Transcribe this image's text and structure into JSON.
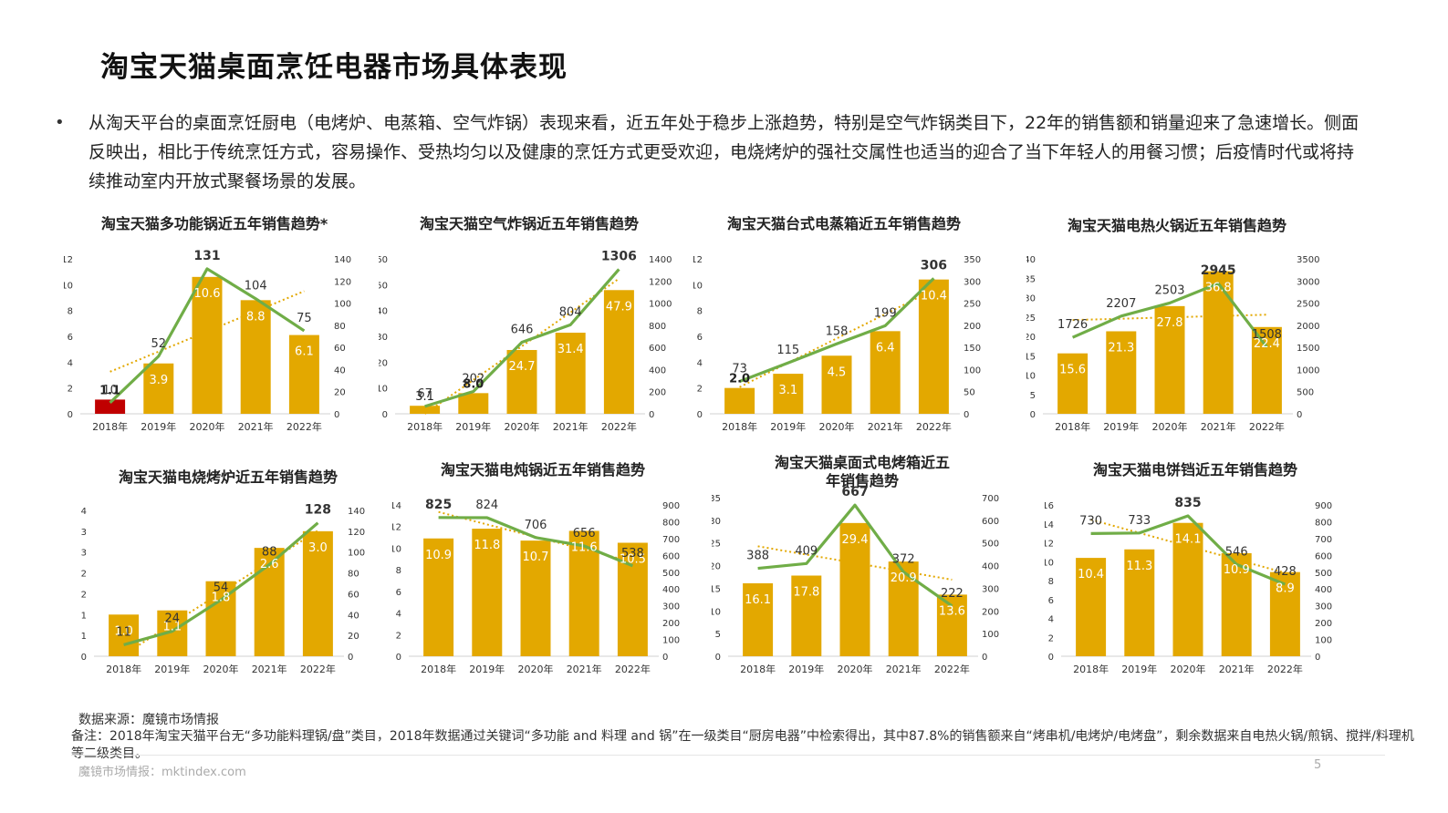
{
  "page": {
    "title": "淘宝天猫桌面烹饪电器市场具体表现",
    "bullet_marker": "•",
    "bullet_text": "从淘天平台的桌面烹饪厨电（电烤炉、电蒸箱、空气炸锅）表现来看，近五年处于稳步上涨趋势，特别是空气炸锅类目下，22年的销售额和销量迎来了急速增长。侧面反映出，相比于传统烹饪方式，容易操作、受热均匀以及健康的烹饪方式更受欢迎，电烧烤炉的强社交属性也适当的迎合了当下年轻人的用餐习惯；后疫情时代或将持续推动室内开放式聚餐场景的发展。",
    "source": "数据来源：魔镜市场情报",
    "note": "备注：2018年淘宝天猫平台无“多功能料理锅/盘”类目，2018年数据通过关键词“多功能 and 料理 and 锅”在一级类目“厨房电器”中检索得出，其中87.8%的销售额来自“烤串机/电烤炉/电烤盘”，剩余数据来自电热火锅/煎锅、搅拌/料理机等二级类目。",
    "website": "魔镜市场情报：mktindex.com",
    "page_number": "5"
  },
  "colors": {
    "bar": "#e3a800",
    "bar_highlight": "#c00000",
    "line": "#70ad47",
    "trend": "#e3a800",
    "axis_text": "#333333"
  },
  "chart_data": [
    {
      "type": "bar",
      "title": "淘宝天猫多功能锅近五年销售趋势*",
      "categories": [
        "2018年",
        "2019年",
        "2020年",
        "2021年",
        "2022年"
      ],
      "series": [
        {
          "values": [
            1.1,
            3.9,
            10.6,
            8.8,
            6.1
          ],
          "labels": [
            "1.1",
            "3.9",
            "10.6",
            "8.8",
            "6.1"
          ],
          "axis": "left"
        },
        {
          "values": [
            10,
            52,
            131,
            104,
            75
          ],
          "labels": [
            "10",
            "52",
            "131",
            "104",
            "75"
          ],
          "axis": "right",
          "kind": "line"
        }
      ],
      "highlight_bar_index": 0,
      "trendline": true,
      "ylim_left": [
        0,
        12
      ],
      "yticks_left": [
        "0",
        "2",
        "4",
        "6",
        "8",
        "10",
        "12"
      ],
      "ylim_right": [
        0,
        140
      ],
      "yticks_right": [
        "0",
        "20",
        "40",
        "60",
        "80",
        "100",
        "120",
        "140"
      ],
      "bold_line_label_index": 2,
      "bold_bar_label_index": 0
    },
    {
      "type": "bar",
      "title": "淘宝天猫空气炸锅近五年销售趋势",
      "categories": [
        "2018年",
        "2019年",
        "2020年",
        "2021年",
        "2022年"
      ],
      "series": [
        {
          "values": [
            3.1,
            8.0,
            24.7,
            31.4,
            47.9
          ],
          "labels": [
            "3.1",
            "8.0",
            "24.7",
            "31.4",
            "47.9"
          ],
          "axis": "left"
        },
        {
          "values": [
            67,
            202,
            646,
            804,
            1306
          ],
          "labels": [
            "67",
            "202",
            "646",
            "804",
            "1306"
          ],
          "axis": "right",
          "kind": "line"
        }
      ],
      "trendline": true,
      "ylim_left": [
        0,
        60
      ],
      "yticks_left": [
        "0",
        "10",
        "20",
        "30",
        "40",
        "50",
        "60"
      ],
      "ylim_right": [
        0,
        1400
      ],
      "yticks_right": [
        "0",
        "200",
        "400",
        "600",
        "800",
        "1000",
        "1200",
        "1400"
      ],
      "bold_line_label_index": 4,
      "bold_bar_label_index": 1
    },
    {
      "type": "bar",
      "title": "淘宝天猫台式电蒸箱近五年销售趋势",
      "categories": [
        "2018年",
        "2019年",
        "2020年",
        "2021年",
        "2022年"
      ],
      "series": [
        {
          "values": [
            2.0,
            3.1,
            4.5,
            6.4,
            10.4
          ],
          "labels": [
            "2.0",
            "3.1",
            "4.5",
            "6.4",
            "10.4"
          ],
          "axis": "left"
        },
        {
          "values": [
            73,
            115,
            158,
            199,
            306
          ],
          "labels": [
            "73",
            "115",
            "158",
            "199",
            "306"
          ],
          "axis": "right",
          "kind": "line"
        }
      ],
      "trendline": true,
      "ylim_left": [
        0,
        12
      ],
      "yticks_left": [
        "0",
        "2",
        "4",
        "6",
        "8",
        "10",
        "12"
      ],
      "ylim_right": [
        0,
        350
      ],
      "yticks_right": [
        "0",
        "50",
        "100",
        "150",
        "200",
        "250",
        "300",
        "350"
      ],
      "bold_line_label_index": 4,
      "bold_bar_label_index": 0
    },
    {
      "type": "bar",
      "title": "淘宝天猫电热火锅近五年销售趋势",
      "categories": [
        "2018年",
        "2019年",
        "2020年",
        "2021年",
        "2022年"
      ],
      "series": [
        {
          "values": [
            15.6,
            21.3,
            27.8,
            36.8,
            22.4
          ],
          "labels": [
            "15.6",
            "21.3",
            "27.8",
            "36.8",
            "22.4"
          ],
          "axis": "left"
        },
        {
          "values": [
            1726,
            2207,
            2503,
            2945,
            1508
          ],
          "labels": [
            "1726",
            "2207",
            "2503",
            "2945",
            "1508"
          ],
          "axis": "right",
          "kind": "line"
        }
      ],
      "trendline": true,
      "ylim_left": [
        0,
        40
      ],
      "yticks_left": [
        "0",
        "5",
        "10",
        "15",
        "20",
        "25",
        "30",
        "35",
        "40"
      ],
      "ylim_right": [
        0,
        3500
      ],
      "yticks_right": [
        "0",
        "500",
        "1000",
        "1500",
        "2000",
        "2500",
        "3000",
        "3500"
      ],
      "bold_line_label_index": 3,
      "bold_bar_label_index": -1
    },
    {
      "type": "bar",
      "title": "淘宝天猫电烧烤炉近五年销售趋势",
      "categories": [
        "2018年",
        "2019年",
        "2020年",
        "2021年",
        "2022年"
      ],
      "series": [
        {
          "values": [
            1.0,
            1.1,
            1.8,
            2.6,
            3.0
          ],
          "labels": [
            "1.0",
            "1.1",
            "1.8",
            "2.6",
            "3.0"
          ],
          "axis": "left"
        },
        {
          "values": [
            11,
            24,
            54,
            88,
            128
          ],
          "labels": [
            "11",
            "24",
            "54",
            "88",
            "128"
          ],
          "axis": "right",
          "kind": "line"
        }
      ],
      "trendline": true,
      "ylim_left": [
        0,
        3.5
      ],
      "yticks_left": [
        "0",
        "1",
        "1",
        "2",
        "2",
        "3",
        "3",
        "4"
      ],
      "ylim_right": [
        0,
        140
      ],
      "yticks_right": [
        "0",
        "20",
        "40",
        "60",
        "80",
        "100",
        "120",
        "140"
      ],
      "bold_line_label_index": 4,
      "bold_bar_label_index": -1
    },
    {
      "type": "bar",
      "title": "淘宝天猫电炖锅近五年销售趋势",
      "categories": [
        "2018年",
        "2019年",
        "2020年",
        "2021年",
        "2022年"
      ],
      "series": [
        {
          "values": [
            10.9,
            11.8,
            10.7,
            11.6,
            10.5
          ],
          "labels": [
            "10.9",
            "11.8",
            "10.7",
            "11.6",
            "10.5"
          ],
          "axis": "left"
        },
        {
          "values": [
            825,
            824,
            706,
            656,
            538
          ],
          "labels": [
            "825",
            "824",
            "706",
            "656",
            "538"
          ],
          "axis": "right",
          "kind": "line"
        }
      ],
      "trendline": true,
      "ylim_left": [
        0,
        14
      ],
      "yticks_left": [
        "0",
        "2",
        "4",
        "6",
        "8",
        "10",
        "12",
        "14"
      ],
      "ylim_right": [
        0,
        900
      ],
      "yticks_right": [
        "0",
        "100",
        "200",
        "300",
        "400",
        "500",
        "600",
        "700",
        "800",
        "900"
      ],
      "bold_line_label_index": 0,
      "bold_bar_label_index": -1
    },
    {
      "type": "bar",
      "title": "淘宝天猫桌面式电烤箱近五年销售趋势",
      "categories": [
        "2018年",
        "2019年",
        "2020年",
        "2021年",
        "2022年"
      ],
      "series": [
        {
          "values": [
            16.1,
            17.8,
            29.4,
            20.9,
            13.6
          ],
          "labels": [
            "16.1",
            "17.8",
            "29.4",
            "20.9",
            "13.6"
          ],
          "axis": "left"
        },
        {
          "values": [
            388,
            409,
            667,
            372,
            222
          ],
          "labels": [
            "388",
            "409",
            "667",
            "372",
            "222"
          ],
          "axis": "right",
          "kind": "line"
        }
      ],
      "trendline": true,
      "ylim_left": [
        0,
        35
      ],
      "yticks_left": [
        "0",
        "5",
        "10",
        "15",
        "20",
        "25",
        "30",
        "35"
      ],
      "ylim_right": [
        0,
        700
      ],
      "yticks_right": [
        "0",
        "100",
        "200",
        "300",
        "400",
        "500",
        "600",
        "700"
      ],
      "bold_line_label_index": 2,
      "bold_bar_label_index": -1
    },
    {
      "type": "bar",
      "title": "淘宝天猫电饼铛近五年销售趋势",
      "categories": [
        "2018年",
        "2019年",
        "2020年",
        "2021年",
        "2022年"
      ],
      "series": [
        {
          "values": [
            10.4,
            11.3,
            14.1,
            10.9,
            8.9
          ],
          "labels": [
            "10.4",
            "11.3",
            "14.1",
            "10.9",
            "8.9"
          ],
          "axis": "left"
        },
        {
          "values": [
            730,
            733,
            835,
            546,
            428
          ],
          "labels": [
            "730",
            "733",
            "835",
            "546",
            "428"
          ],
          "axis": "right",
          "kind": "line"
        }
      ],
      "trendline": true,
      "ylim_left": [
        0,
        16
      ],
      "yticks_left": [
        "0",
        "2",
        "4",
        "6",
        "8",
        "10",
        "12",
        "14",
        "16"
      ],
      "ylim_right": [
        0,
        900
      ],
      "yticks_right": [
        "0",
        "100",
        "200",
        "300",
        "400",
        "500",
        "600",
        "700",
        "800",
        "900"
      ],
      "bold_line_label_index": 2,
      "bold_bar_label_index": -1
    }
  ]
}
